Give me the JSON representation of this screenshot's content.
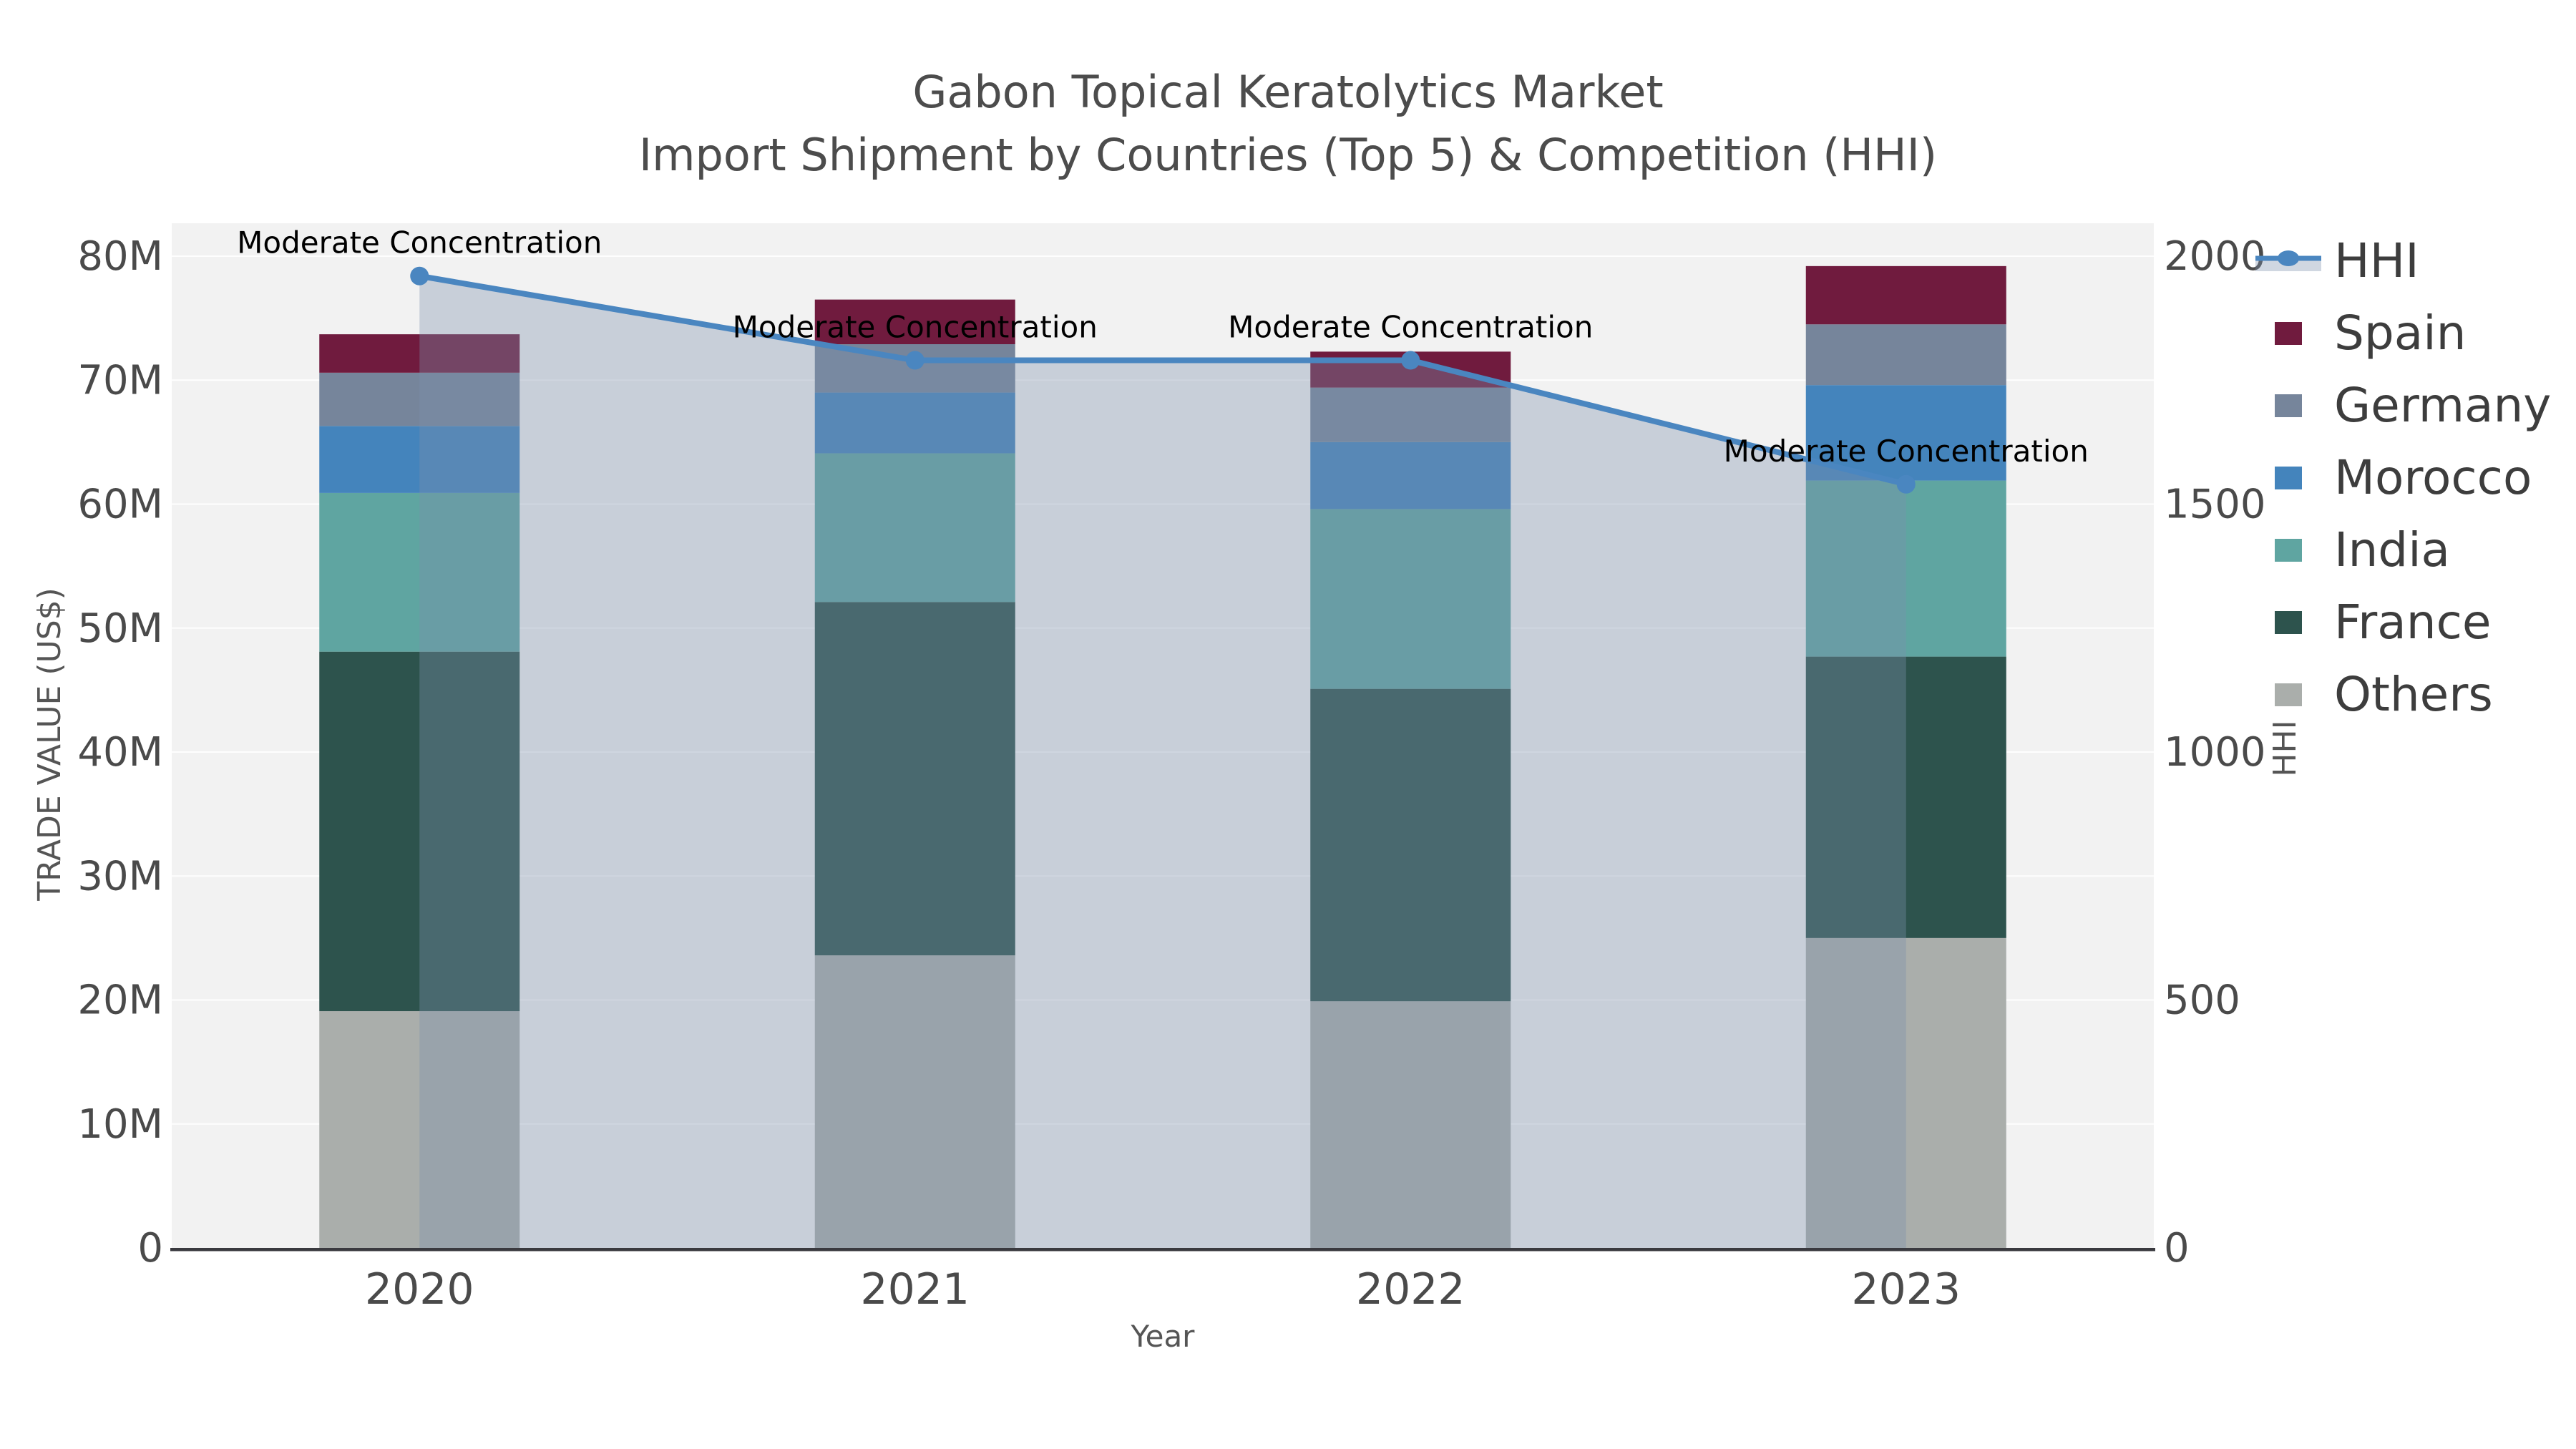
{
  "title": {
    "line1": "Gabon Topical Keratolytics Market",
    "line2": "Import Shipment by Countries (Top 5) & Competition (HHI)"
  },
  "chart_data": {
    "type": "bar+line",
    "subtype": "stacked bars with secondary-axis HHI line and translucent area fill",
    "categories": [
      "2020",
      "2021",
      "2022",
      "2023"
    ],
    "values_unit": "US$M",
    "series": [
      {
        "name": "Others",
        "color": "#aaaeab",
        "values": [
          19.1,
          23.6,
          19.9,
          25.0
        ]
      },
      {
        "name": "France",
        "color": "#2d534d",
        "values": [
          29.0,
          28.5,
          25.2,
          22.7
        ]
      },
      {
        "name": "India",
        "color": "#5fa5a1",
        "values": [
          12.8,
          12.0,
          14.5,
          14.2
        ]
      },
      {
        "name": "Morocco",
        "color": "#4484bc",
        "values": [
          5.4,
          4.9,
          5.4,
          7.7
        ]
      },
      {
        "name": "Germany",
        "color": "#76859b",
        "values": [
          4.3,
          3.9,
          4.4,
          4.9
        ]
      },
      {
        "name": "Spain",
        "color": "#701b3e",
        "values": [
          3.1,
          3.6,
          2.9,
          4.7
        ]
      }
    ],
    "hhi": {
      "name": "HHI",
      "line_color": "#4a86c0",
      "area_fill": "rgba(125,143,173,0.36)",
      "values": [
        1960,
        1790,
        1790,
        1540
      ]
    },
    "annotations": [
      "Moderate Concentration",
      "Moderate Concentration",
      "Moderate Concentration",
      "Moderate Concentration"
    ],
    "xlabel": "Year",
    "ylabel_left": "TRADE VALUE (US$)",
    "ylabel_right": "HHI",
    "yticks_left": [
      "0",
      "10M",
      "20M",
      "30M",
      "40M",
      "50M",
      "60M",
      "70M",
      "80M"
    ],
    "yticks_right": [
      "0",
      "500",
      "1000",
      "1500",
      "2000"
    ],
    "ylim_left": [
      0,
      80
    ],
    "ylim_right": [
      0,
      2000
    ],
    "grid": "on",
    "plot_bg": "#f2f2f2",
    "axis_line_color": "#3a3a3f",
    "tick_color": "#4a4a4a",
    "annotation_color": "#000000",
    "legend_position": "right",
    "legend": [
      {
        "label": "HHI",
        "type": "line"
      },
      {
        "label": "Spain",
        "type": "box",
        "color": "#701b3e"
      },
      {
        "label": "Germany",
        "type": "box",
        "color": "#76859b"
      },
      {
        "label": "Morocco",
        "type": "box",
        "color": "#4484bc"
      },
      {
        "label": "India",
        "type": "box",
        "color": "#5fa5a1"
      },
      {
        "label": "France",
        "type": "box",
        "color": "#2d534d"
      },
      {
        "label": "Others",
        "type": "box",
        "color": "#aaaeab"
      }
    ]
  }
}
